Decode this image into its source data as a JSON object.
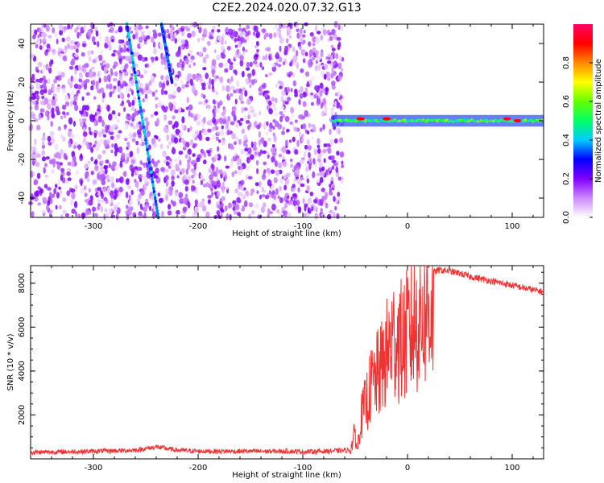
{
  "title": "C2E2.2024.020.07.32.G13",
  "chart_data": [
    {
      "type": "heatmap",
      "xlabel": "Height of straight line (km)",
      "ylabel": "Frequency (Hz)",
      "xlim": [
        -360,
        130
      ],
      "ylim": [
        -50,
        50
      ],
      "xticks": [
        -300,
        -200,
        -100,
        0,
        100
      ],
      "yticks": [
        -40,
        -20,
        0,
        20,
        40
      ],
      "colorbar": {
        "label": "Normalized spectral amplitude",
        "range": [
          0,
          1
        ],
        "ticks": [
          "0.0",
          "0.2",
          "0.4",
          "0.6",
          "0.8"
        ],
        "colors": [
          "#ffffff",
          "#cc88ff",
          "#8000ff",
          "#0000ff",
          "#00ccff",
          "#00ff66",
          "#66ff00",
          "#ffff00",
          "#ff8800",
          "#ff0000",
          "#ff0066"
        ]
      },
      "features": [
        {
          "kind": "broadband noise",
          "x_range": [
            -360,
            -62
          ],
          "freq_range": [
            -50,
            50
          ],
          "amplitude": 0.15
        },
        {
          "kind": "diagonal streak",
          "x_start": -268,
          "x_end": -238,
          "freq_start": 50,
          "freq_end": -50,
          "amplitude": 0.3
        },
        {
          "kind": "diagonal streak",
          "x_start": -235,
          "x_end": -225,
          "freq_start": 50,
          "freq_end": 20,
          "amplitude": 0.25
        },
        {
          "kind": "carrier line",
          "x_range": [
            -72,
            130
          ],
          "freq": 0,
          "amplitude": 0.5
        },
        {
          "kind": "carrier peak",
          "x": -45,
          "freq": 1,
          "amplitude": 0.9
        },
        {
          "kind": "carrier peak",
          "x": -20,
          "freq": 1,
          "amplitude": 0.9
        },
        {
          "kind": "carrier peak",
          "x": 95,
          "freq": 1,
          "amplitude": 0.95
        },
        {
          "kind": "carrier peak",
          "x": 105,
          "freq": 0,
          "amplitude": 0.9
        }
      ]
    },
    {
      "type": "line",
      "xlabel": "Height of straight line (km)",
      "ylabel": "SNR (10 * v/v)",
      "xlim": [
        -360,
        130
      ],
      "ylim": [
        0,
        8800
      ],
      "xticks": [
        -300,
        -200,
        -100,
        0,
        100
      ],
      "yticks": [
        2000,
        4000,
        6000,
        8000
      ],
      "color": "#ee3333",
      "x": [
        -360,
        -300,
        -260,
        -240,
        -220,
        -200,
        -150,
        -110,
        -100,
        -80,
        -55,
        -50,
        -48,
        -45,
        -40,
        -35,
        -30,
        -25,
        -20,
        -15,
        -10,
        -5,
        0,
        5,
        10,
        15,
        20,
        25,
        30,
        40,
        50,
        60,
        70,
        80,
        90,
        100,
        110,
        120,
        130
      ],
      "values": [
        250,
        300,
        350,
        500,
        350,
        300,
        300,
        300,
        280,
        300,
        350,
        1500,
        400,
        2200,
        3000,
        4000,
        4500,
        5000,
        5800,
        6500,
        6800,
        6400,
        6900,
        7300,
        7700,
        8100,
        8300,
        8500,
        8600,
        8550,
        8450,
        8300,
        8200,
        8100,
        8000,
        7900,
        7800,
        7700,
        7600
      ]
    }
  ]
}
